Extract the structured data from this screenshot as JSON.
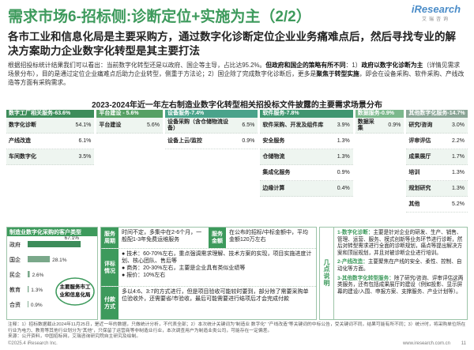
{
  "header": {
    "title": "需求市场6-招标侧:诊断定位+实施为主（2/2）",
    "logo": "iResearch",
    "logo_sub": "艾瑞咨询"
  },
  "summary": "各市工业和信息化局是主要采购方，通过数字化诊断定位企业业务痛难点后，然后寻找专业的解决方案助力企业数字化转型是其主要打法",
  "intro": [
    {
      "text": "根据招投标统计结果我们可以看出：当前数字化转型还是以政府、国企等主导，占比达95.2%。",
      "bold": false
    },
    {
      "text": "但政府和国企的策略有所不同",
      "bold": true
    },
    {
      "text": "：1）",
      "bold": false
    },
    {
      "text": "政府以数字化诊断为主",
      "bold": true
    },
    {
      "text": "（详情见需求场景分布），目的是通过定位企业痛难点后助力企业转型，侧重于方法论；2）国企除了完成数字化诊断后，更多是",
      "bold": false
    },
    {
      "text": "聚焦于转型实施",
      "bold": true
    },
    {
      "text": "，即会在设备采购、软件采购、产线改造等方面有采购需求。",
      "bold": false
    }
  ],
  "scene_table": {
    "title": "2023-2024年近一年左右制造业数字化转型相关招投标文件披露的主要需求场景分布",
    "groups": [
      {
        "header": "数字工厂相关服务-63.6%",
        "color": "#3d8c5a",
        "items": [
          {
            "label": "数字化诊断",
            "value": "54.1%"
          },
          {
            "label": "产线改造",
            "value": "6.1%"
          },
          {
            "label": "车间数字化",
            "value": "3.5%"
          }
        ]
      },
      {
        "header": "平台建设 - 5.6%",
        "color": "#56a064",
        "items": [
          {
            "label": "平台建设",
            "value": "5.6%"
          }
        ]
      },
      {
        "header": "设备服务-7.4%",
        "color": "#4aa38b",
        "items": [
          {
            "label": "设备采购（含仓储物流设备）",
            "value": "6.5%"
          },
          {
            "label": "设备上云/监控",
            "value": "0.9%"
          }
        ]
      },
      {
        "header": "软件服务-7.8%",
        "color": "#3f9670",
        "items": [
          {
            "label": "软件采购、开发及组件库",
            "value": "3.9%"
          },
          {
            "label": "安全服务",
            "value": "1.3%"
          },
          {
            "label": "仓储物流",
            "value": "1.3%"
          },
          {
            "label": "集成化服务",
            "value": "0.9%"
          },
          {
            "label": "边缘计算",
            "value": "0.4%"
          }
        ]
      },
      {
        "header": "数据服务-0.9%",
        "color": "#7bb88c",
        "items": [
          {
            "label": "数据采集",
            "value": "0.9%"
          }
        ]
      },
      {
        "header": "其他数字化服务-14.7%",
        "color": "#8aa596",
        "items": [
          {
            "label": "研究/咨询",
            "value": "3.0%"
          },
          {
            "label": "评审评估",
            "value": "2.2%"
          },
          {
            "label": "成果展厅",
            "value": "1.7%"
          },
          {
            "label": "培训",
            "value": "1.3%"
          },
          {
            "label": "规划研究",
            "value": "1.3%"
          },
          {
            "label": "其他",
            "value": "5.2%"
          }
        ]
      }
    ]
  },
  "chart_data": {
    "type": "bar",
    "title": "制造业数字化采购的客户类型",
    "categories": [
      "政府",
      "国企",
      "民企",
      "教育",
      "合资"
    ],
    "values": [
      67.1,
      28.1,
      2.6,
      1.3,
      0.9
    ],
    "value_labels": [
      "67.1%",
      "28.1%",
      "2.6%",
      "1.3%",
      "0.9%"
    ],
    "color": "#7aa88a",
    "annotation": "主要服务市工业和信息化局"
  },
  "service": {
    "period_label": "服务周期",
    "period": "时间不定，多集中在2-6个月，一般配1-3年免费运维服务",
    "amount_label": "服务金额",
    "amount": "在公布的招标/中标金额中，平均金额120万左右",
    "score_label": "评标情况",
    "score": [
      "技术：60-70%左右，重点强调需求理解、技术方案的实现，项目实施进度计划、核心团队、售后等",
      "商务：20-30%左右，主要是企业具有类似业绩等",
      "报价：10%左右"
    ],
    "pay_label": "付款方式",
    "pay": "多以4:6、3:7的方式进行，但是项目验收可能较时要到，部分除了需要采购单位验收外，还需要省/市验收，最后可能需要进行结项后才会完成付款"
  },
  "notes": {
    "label": "几点说明",
    "items": [
      {
        "title": "1-数字化诊断：",
        "text": "主要是针对企业的研发、生产、销售、管理、运营、服务、模式创新等业务环节进行诊断，然后对转型需求进行全面的诊断规划，痛点等提出解决方案和顶层规划，并且对被诊断企业进行培训。"
      },
      {
        "title": "2-产线改造：",
        "text": "主要聚焦在产线的安全、柔性、控制、自动化等方面。"
      },
      {
        "title": "3-其他数字化转型服务：",
        "text": "除了研究/咨询、评审评估这两类服务，还有包括成果展厅的建设（例如投影、显示屏幕的建设/入围、申报方案、支撑服务、产业计划等）。"
      }
    ]
  },
  "footer": {
    "note": "注释：1）招标数据截止2024年11月25日，是近一年的数据，只做统计分析，不代表全部；2）本次统计关键词为“制造业 数字化” “产线改造”等关键词的中标公告，受关键词不同，结果可能有所不同；3）统计时，将采购单位所在行业为电力、教育等其他行业划分为“其他”，只保留了运营商等非制造业行业，本次调查用户为制造业类公司，可能存在一定偏差。",
    "source": "来源：公开资料，中国招标网，艾瑞咨询研究院自主研究及绘制。",
    "copyright": "©2025.4 iResearch Inc.",
    "site": "www.iresearch.com.cn",
    "page": "11"
  }
}
